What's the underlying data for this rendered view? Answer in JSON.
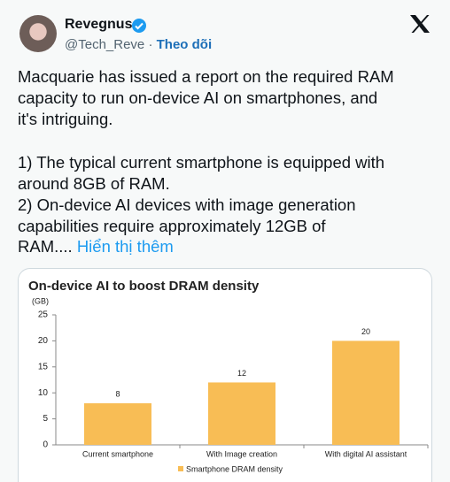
{
  "tweet": {
    "name": "Revegnus",
    "handle": "@Tech_Reve",
    "separator": "·",
    "follow": "Theo dõi",
    "lines": [
      "Macquarie has issued a report on the required RAM",
      "capacity to run on-device AI on smartphones, and",
      "it's intriguing.",
      "1) The typical current smartphone is equipped with",
      "around 8GB of RAM.",
      "2) On-device AI devices with image generation",
      "capabilities require approximately 12GB of",
      "RAM...."
    ],
    "show_more": "Hiển thị thêm"
  },
  "chart_data": {
    "type": "bar",
    "title": "On-device AI to boost DRAM density",
    "y_unit": "(GB)",
    "categories": [
      "Current smartphone",
      "With Image creation",
      "With digital AI assistant"
    ],
    "series": [
      {
        "name": "Smartphone DRAM density",
        "color": "#f8bd55",
        "values": [
          8,
          12,
          20
        ]
      }
    ],
    "ylim": [
      0,
      25
    ],
    "yticks": [
      0,
      5,
      10,
      15,
      20,
      25
    ],
    "grid": false,
    "legend": "bottom"
  }
}
